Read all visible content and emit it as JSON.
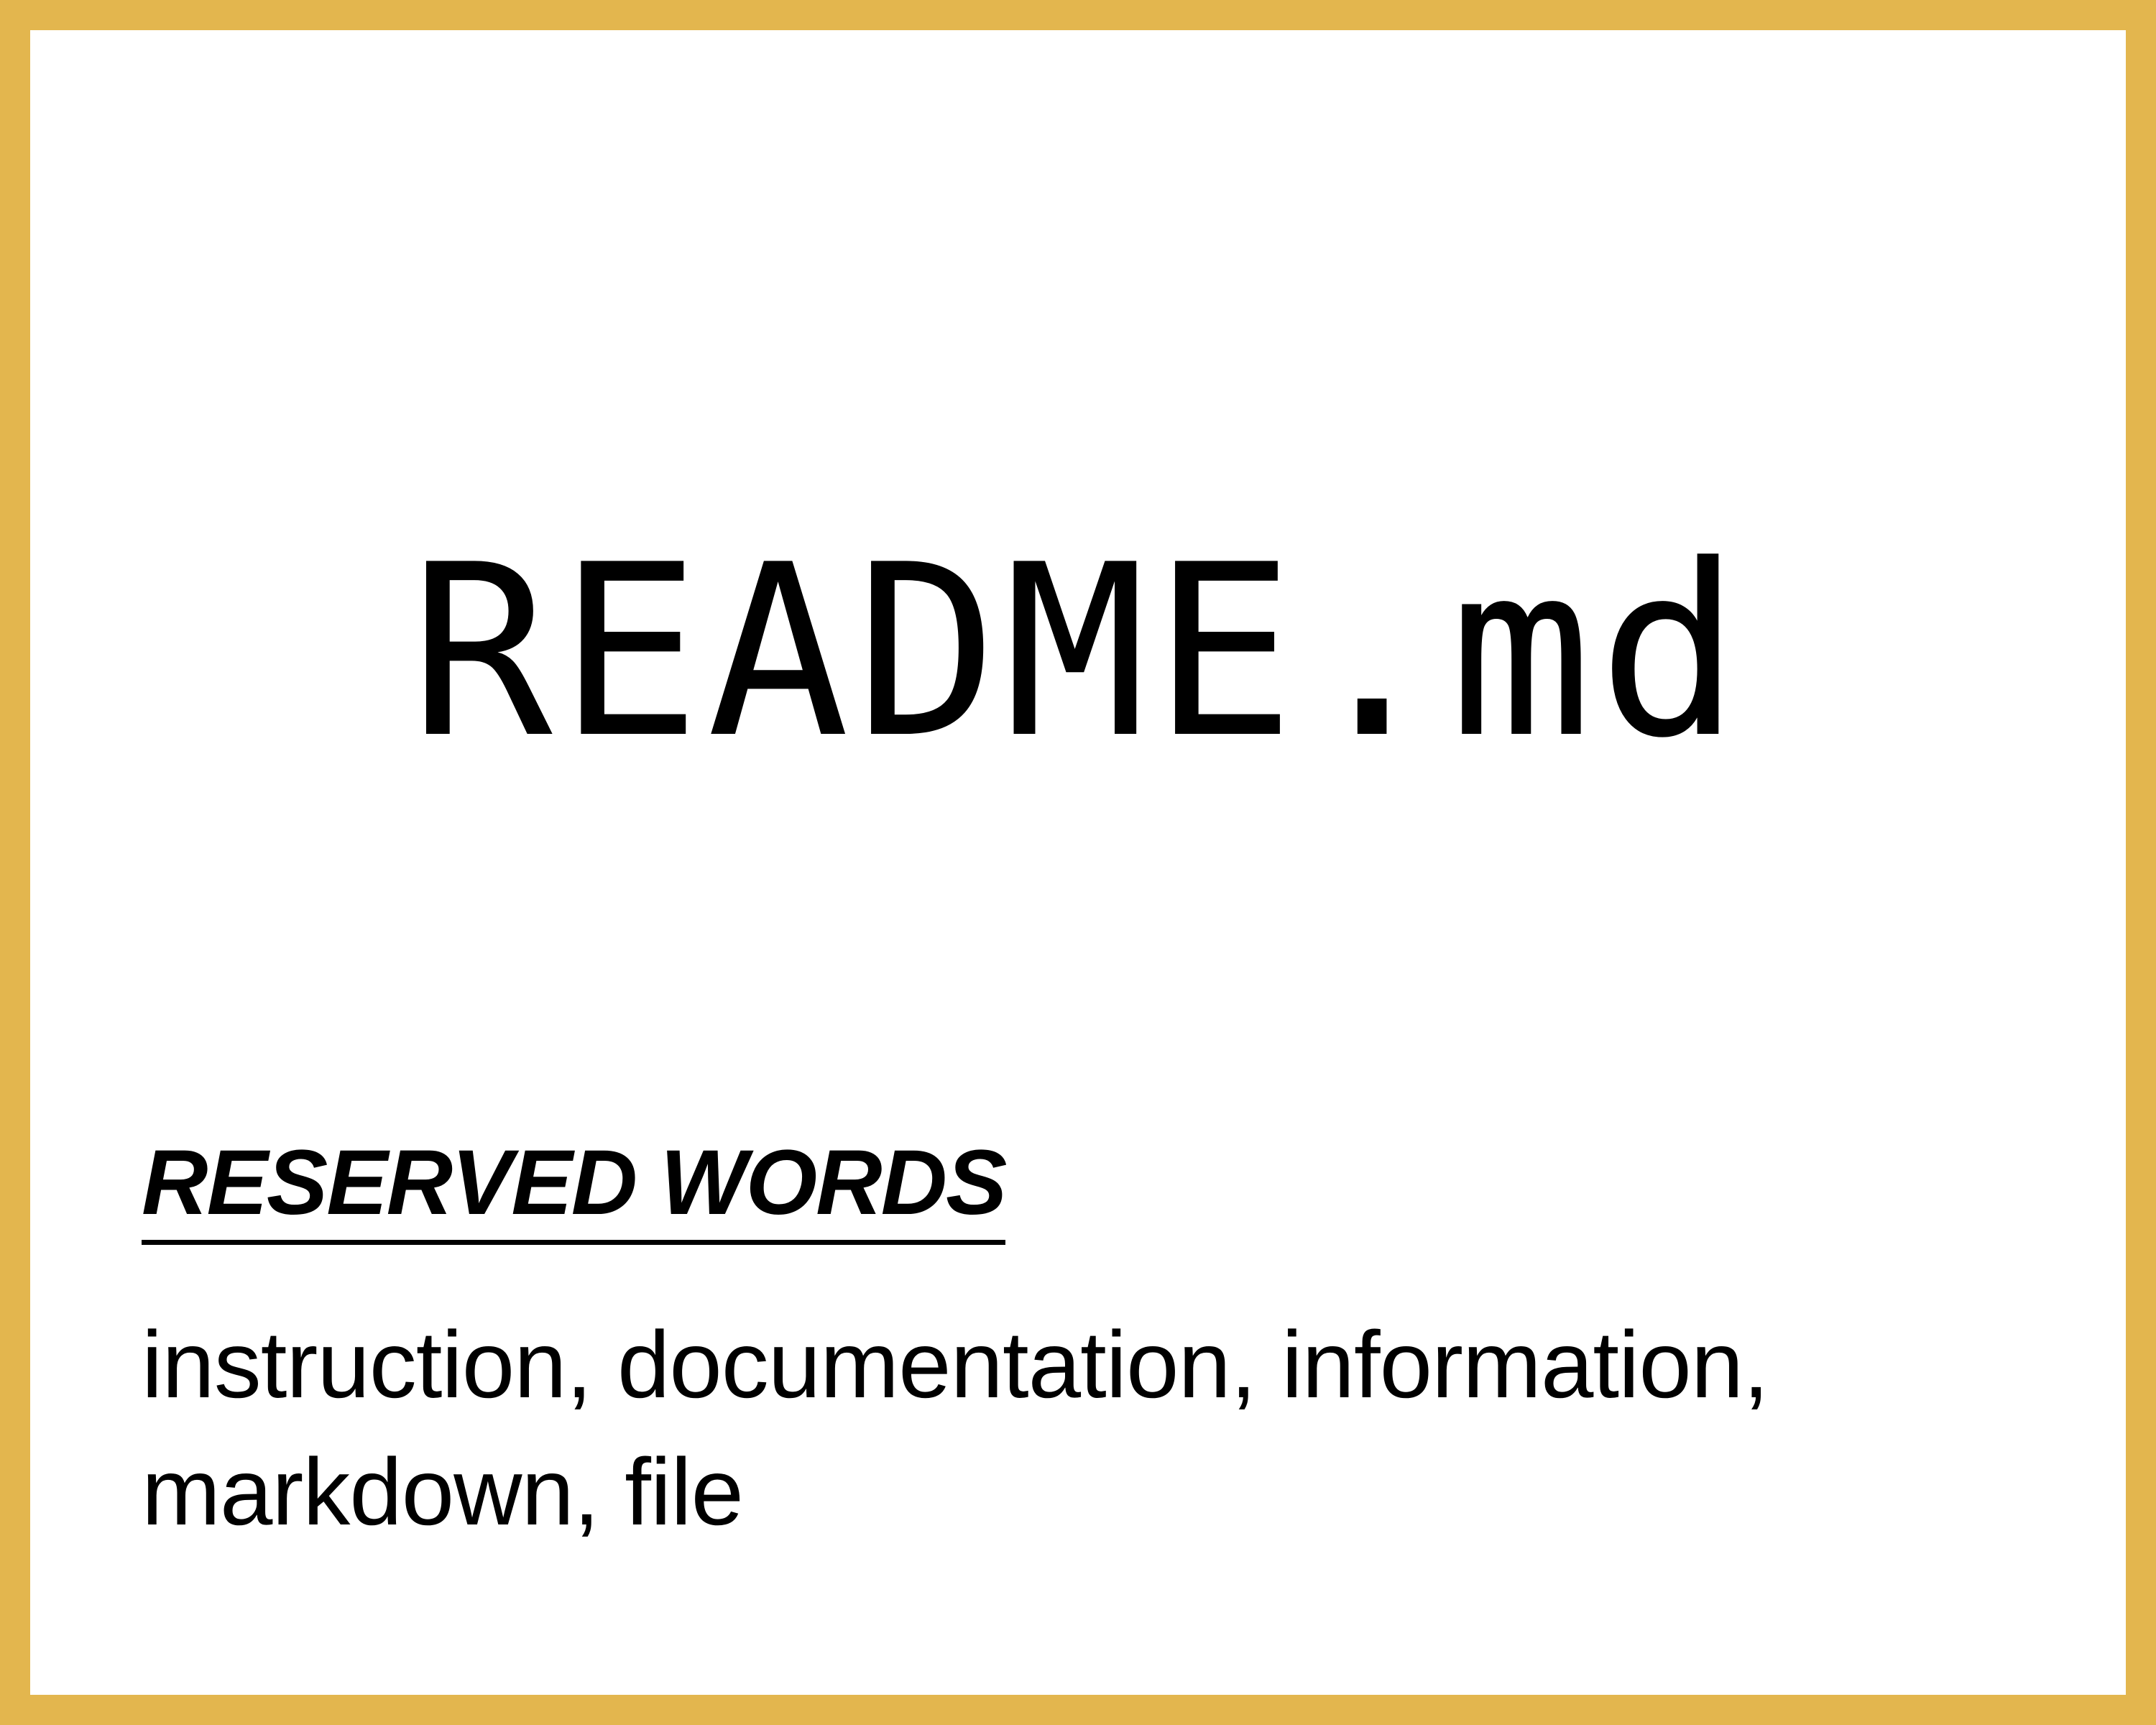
{
  "title": "README.md",
  "reserved_words": {
    "heading": "RESERVED WORDS",
    "line1": "instruction, documentation, information,",
    "line2": "markdown, file"
  },
  "colors": {
    "border": "#E3B64E",
    "background": "#FFFFFF",
    "text": "#000000"
  }
}
